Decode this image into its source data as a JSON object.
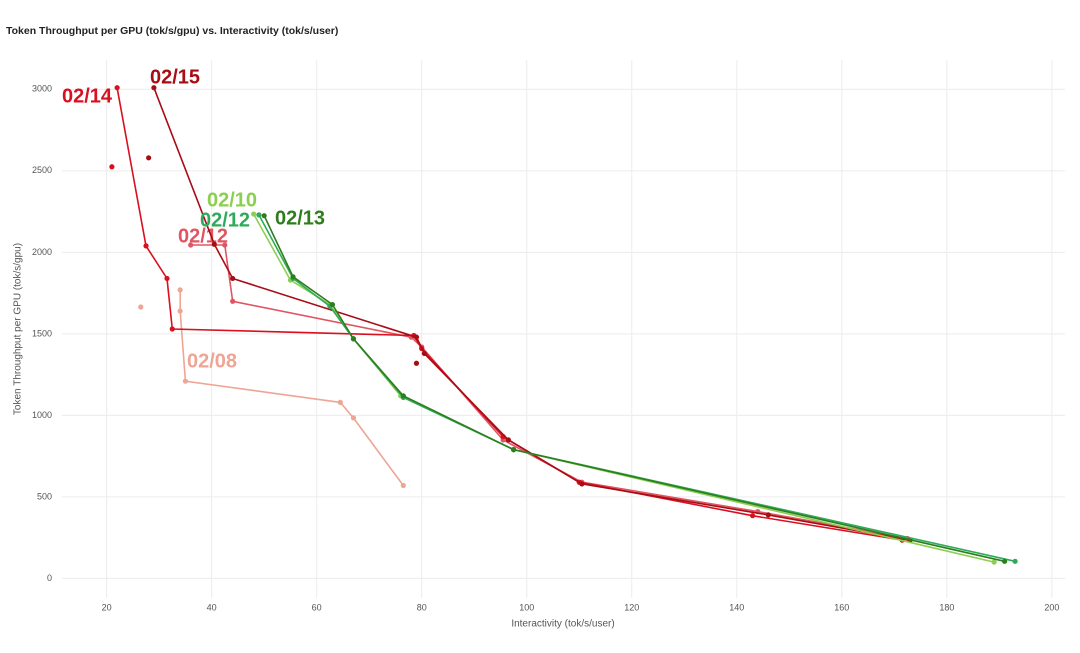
{
  "chart_data": {
    "type": "line",
    "title": "Token Throughput per GPU (tok/s/gpu) vs. Interactivity (tok/s/user)",
    "x_label": "Interactivity (tok/s/user)",
    "y_label": "Token Throughput per GPU (tok/s/gpu)",
    "xlim": [
      11.5,
      202.5
    ],
    "ylim": [
      -120,
      3180
    ],
    "xticks": [
      20,
      40,
      60,
      80,
      100,
      120,
      140,
      160,
      180,
      200
    ],
    "yticks": [
      0,
      500,
      1000,
      1500,
      2000,
      2500,
      3000
    ],
    "grid": true,
    "series": [
      {
        "name": "02/08",
        "color": "#eea594",
        "x": [
          26.5,
          null,
          34,
          34,
          35,
          64.5,
          67,
          76.5
        ],
        "values": [
          1665,
          null,
          1770,
          1640,
          1210,
          1080,
          985,
          570
        ]
      },
      {
        "name": "02/12",
        "color": "#e05562",
        "x": [
          36,
          42.5,
          44,
          78,
          80,
          95.5,
          110.5,
          144,
          172.5
        ],
        "values": [
          2045,
          2045,
          1700,
          1480,
          1420,
          850,
          590,
          410,
          245
        ]
      },
      {
        "name": "02/14",
        "color": "#d81020",
        "x": [
          21,
          null,
          22,
          27.5,
          31.5,
          32.5,
          78.5,
          80,
          95.5,
          110,
          143,
          171.5
        ],
        "values": [
          2525,
          null,
          3010,
          2040,
          1840,
          1530,
          1490,
          1410,
          870,
          590,
          385,
          235
        ]
      },
      {
        "name": "02/15",
        "color": "#a80c14",
        "x": [
          28,
          null,
          79,
          null,
          29,
          40.5,
          44,
          79,
          80.5,
          96.5,
          110.5,
          146,
          173
        ],
        "values": [
          2580,
          null,
          1320,
          null,
          3010,
          2050,
          1840,
          1480,
          1380,
          850,
          580,
          390,
          235
        ]
      },
      {
        "name": "02/10",
        "color": "#8ccf50",
        "x": [
          48,
          55,
          62.5,
          67,
          76,
          97.5,
          189
        ],
        "values": [
          2235,
          1830,
          1680,
          1470,
          1120,
          790,
          100
        ]
      },
      {
        "name": "02/12",
        "color": "#2eab5a",
        "x": [
          49,
          55.5,
          62.5,
          67,
          76.5,
          97.5,
          193
        ],
        "values": [
          2230,
          1840,
          1670,
          1470,
          1110,
          790,
          105
        ]
      },
      {
        "name": "02/13",
        "color": "#2e7d1e",
        "x": [
          50,
          55.5,
          63,
          67,
          76.5,
          97.5,
          191
        ],
        "values": [
          2225,
          1850,
          1680,
          1470,
          1120,
          790,
          105
        ]
      }
    ]
  }
}
